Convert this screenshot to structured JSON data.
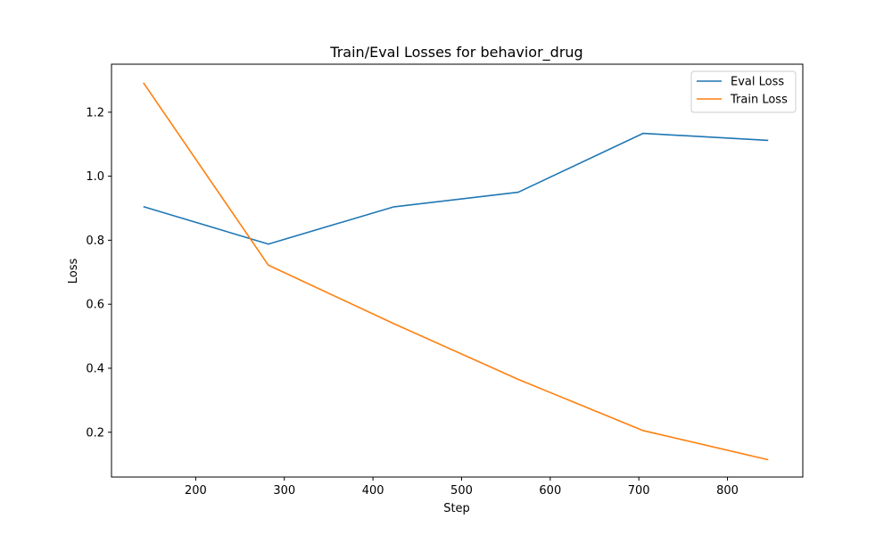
{
  "chart_data": {
    "type": "line",
    "title": "Train/Eval Losses for behavior_drug",
    "xlabel": "Step",
    "ylabel": "Loss",
    "xlim": [
      105,
      885
    ],
    "ylim": [
      0.06,
      1.35
    ],
    "xticks": [
      200,
      300,
      400,
      500,
      600,
      700,
      800
    ],
    "yticks": [
      0.2,
      0.4,
      0.6,
      0.8,
      1.0,
      1.2
    ],
    "xtick_labels": [
      "200",
      "300",
      "400",
      "500",
      "600",
      "700",
      "800"
    ],
    "ytick_labels": [
      "0.2",
      "0.4",
      "0.6",
      "0.8",
      "1.0",
      "1.2"
    ],
    "grid": false,
    "legend_position": "top-right",
    "series": [
      {
        "name": "Eval Loss",
        "color": "#1f77b4",
        "x": [
          141,
          282,
          423,
          564,
          705,
          846
        ],
        "y": [
          0.905,
          0.788,
          0.904,
          0.95,
          1.134,
          1.112
        ]
      },
      {
        "name": "Train Loss",
        "color": "#ff7f0e",
        "x": [
          141,
          282,
          423,
          564,
          705,
          846
        ],
        "y": [
          1.292,
          0.722,
          0.54,
          0.365,
          0.205,
          0.114
        ]
      }
    ]
  }
}
